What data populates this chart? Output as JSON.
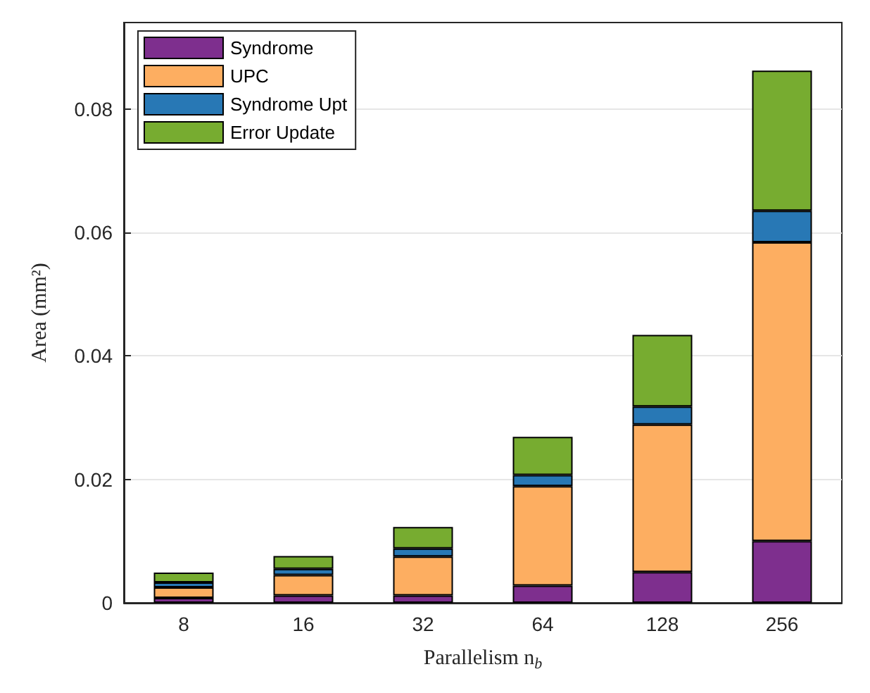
{
  "chart_data": {
    "type": "bar",
    "stacked": true,
    "xlabel": "Parallelism n$_{b}$",
    "ylabel": "Area (mm²)",
    "categories": [
      "8",
      "16",
      "32",
      "64",
      "128",
      "256"
    ],
    "series": [
      {
        "name": "Syndrome",
        "color": "#7e2f8e",
        "values": [
          0.0008,
          0.0012,
          0.0012,
          0.0028,
          0.005,
          0.01
        ]
      },
      {
        "name": "UPC",
        "color": "#fdae61",
        "values": [
          0.0017,
          0.0033,
          0.0063,
          0.0161,
          0.0239,
          0.0484
        ]
      },
      {
        "name": "Syndrome Upt",
        "color": "#2878b5",
        "values": [
          0.0008,
          0.001,
          0.0013,
          0.0018,
          0.0029,
          0.0051
        ]
      },
      {
        "name": "Error Update",
        "color": "#77ac30",
        "values": [
          0.0016,
          0.0021,
          0.0035,
          0.0062,
          0.0116,
          0.0227
        ]
      }
    ],
    "ylim": [
      0,
      0.094
    ],
    "yticks": [
      0,
      0.02,
      0.04,
      0.06,
      0.08
    ],
    "grid": "y",
    "legend": "top left"
  }
}
